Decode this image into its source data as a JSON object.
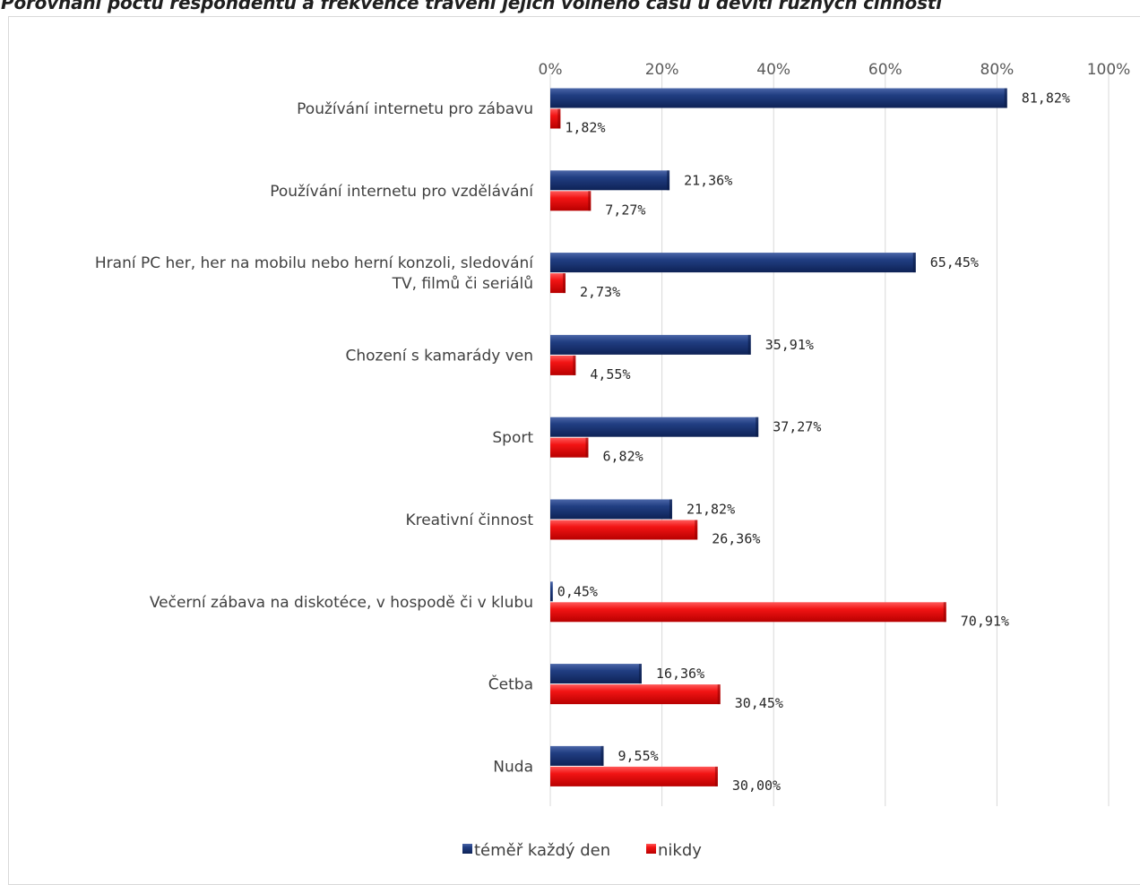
{
  "chart_data": {
    "type": "bar",
    "orientation": "horizontal",
    "title": "Porovnání počtu respondentů a frekvence trávení jejich volného času u devíti různých činností",
    "categories": [
      [
        "Používání internetu pro zábavu"
      ],
      [
        "Používání internetu pro vzdělávání"
      ],
      [
        "Hraní PC her, her na mobilu nebo herní konzoli, sledování",
        "TV, filmů či seriálů"
      ],
      [
        "Chození s kamarády ven"
      ],
      [
        "Sport"
      ],
      [
        "Kreativní činnost"
      ],
      [
        "Večerní zábava na diskotéce, v hospodě či v klubu"
      ],
      [
        "Četba"
      ],
      [
        "Nuda"
      ]
    ],
    "series": [
      {
        "name": "téměř každý den",
        "color": "#1f3a7a",
        "values": [
          81.82,
          21.36,
          65.45,
          35.91,
          37.27,
          21.82,
          0.45,
          16.36,
          9.55
        ],
        "labels": [
          "81,82%",
          "21,36%",
          "65,45%",
          "35,91%",
          "37,27%",
          "21,82%",
          "0,45%",
          "16,36%",
          "9,55%"
        ]
      },
      {
        "name": "nikdy",
        "color": "#ee1111",
        "values": [
          1.82,
          7.27,
          2.73,
          4.55,
          6.82,
          26.36,
          70.91,
          30.45,
          30.0
        ],
        "labels": [
          "1,82%",
          "7,27%",
          "2,73%",
          "4,55%",
          "6,82%",
          "26,36%",
          "70,91%",
          "30,45%",
          "30,00%"
        ]
      }
    ],
    "x_ticks": [
      0,
      20,
      40,
      60,
      80,
      100
    ],
    "x_tick_labels": [
      "0%",
      "20%",
      "40%",
      "60%",
      "80%",
      "100%"
    ],
    "xlim": [
      0,
      100
    ],
    "x_axis_position": "top",
    "grid": true,
    "legend_position": "bottom"
  }
}
